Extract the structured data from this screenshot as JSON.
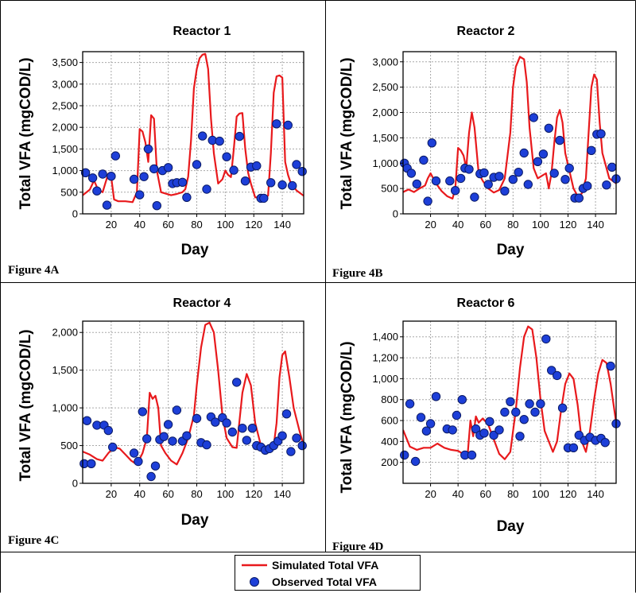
{
  "figure": {
    "captions": [
      "Figure 4A",
      "Figure 4B",
      "Figure 4C",
      "Figure 4D"
    ]
  },
  "legend": {
    "simulated": "Simulated Total VFA",
    "observed": "Observed Total VFA"
  },
  "colors": {
    "simulated": "#e8191c",
    "observed_fill": "#1d3fd8",
    "observed_edge": "#0a1a66",
    "frame": "#000000",
    "grid": "#a8a8a8"
  },
  "chart_data": [
    {
      "type": "line",
      "title": "Reactor 1",
      "xlabel": "Day",
      "ylabel": "Total VFA (mgCOD/L)",
      "xlim": [
        0,
        155
      ],
      "ylim": [
        0,
        3750
      ],
      "xticks": [
        20,
        40,
        60,
        80,
        100,
        120,
        140
      ],
      "xtick_labels": [
        "20",
        "40",
        "60",
        "80",
        "100",
        "120",
        "140"
      ],
      "yticks": [
        0,
        500,
        1000,
        1500,
        2000,
        2500,
        3000,
        3500
      ],
      "ytick_labels": [
        "0",
        "500",
        "1,000",
        "1,500",
        "2,000",
        "2,500",
        "3,000",
        "3,500"
      ],
      "grid": true,
      "series": [
        {
          "name": "Simulated Total VFA",
          "kind": "line",
          "x": [
            0,
            5,
            8,
            10,
            12,
            14,
            16,
            18,
            20,
            22,
            25,
            30,
            35,
            38,
            40,
            42,
            44,
            46,
            48,
            50,
            52,
            55,
            58,
            62,
            66,
            70,
            72,
            74,
            76,
            78,
            80,
            82,
            84,
            86,
            88,
            90,
            92,
            95,
            98,
            100,
            102,
            104,
            106,
            108,
            110,
            112,
            114,
            116,
            118,
            121,
            124,
            127,
            130,
            132,
            134,
            136,
            138,
            140,
            142,
            144,
            146,
            150,
            155
          ],
          "y": [
            430,
            560,
            770,
            620,
            540,
            500,
            720,
            930,
            850,
            330,
            290,
            290,
            270,
            500,
            1960,
            1900,
            1650,
            1200,
            2280,
            2200,
            1000,
            500,
            470,
            430,
            460,
            500,
            570,
            860,
            1700,
            2900,
            3350,
            3600,
            3680,
            3700,
            3350,
            2200,
            1400,
            700,
            800,
            1000,
            900,
            850,
            1500,
            2250,
            2320,
            2330,
            1500,
            950,
            700,
            380,
            380,
            370,
            420,
            1400,
            2800,
            3180,
            3200,
            3150,
            1200,
            900,
            700,
            540,
            420
          ]
        },
        {
          "name": "Observed Total VFA",
          "kind": "scatter",
          "x": [
            2,
            7,
            10,
            14,
            17,
            20,
            23,
            36,
            40,
            43,
            46,
            50,
            52,
            56,
            60,
            63,
            66,
            70,
            73,
            80,
            84,
            87,
            91,
            96,
            101,
            106,
            110,
            114,
            118,
            122,
            125,
            127,
            132,
            136,
            140,
            144,
            147,
            150,
            154
          ],
          "y": [
            950,
            830,
            530,
            920,
            200,
            870,
            1340,
            800,
            440,
            860,
            1500,
            1040,
            190,
            1000,
            1070,
            700,
            720,
            730,
            380,
            1140,
            1800,
            570,
            1700,
            1680,
            1320,
            1010,
            1790,
            760,
            1080,
            1110,
            360,
            360,
            720,
            2080,
            670,
            2050,
            650,
            1140,
            980
          ]
        }
      ]
    },
    {
      "type": "line",
      "title": "Reactor 2",
      "xlabel": "Day",
      "ylabel": "Total VFA (mgCOD/L)",
      "xlim": [
        0,
        155
      ],
      "ylim": [
        0,
        3200
      ],
      "xticks": [
        20,
        40,
        60,
        80,
        100,
        120,
        140
      ],
      "xtick_labels": [
        "20",
        "40",
        "60",
        "80",
        "100",
        "120",
        "140"
      ],
      "yticks": [
        0,
        500,
        1000,
        1500,
        2000,
        2500,
        3000
      ],
      "ytick_labels": [
        "0",
        "500",
        "1,000",
        "1,500",
        "2,000",
        "2,500",
        "3,000"
      ],
      "grid": true,
      "series": [
        {
          "name": "Simulated Total VFA",
          "kind": "line",
          "x": [
            0,
            4,
            8,
            12,
            16,
            18,
            20,
            22,
            24,
            28,
            32,
            36,
            38,
            40,
            42,
            44,
            46,
            48,
            50,
            52,
            55,
            58,
            62,
            66,
            70,
            74,
            78,
            80,
            82,
            85,
            88,
            90,
            92,
            95,
            98,
            101,
            104,
            106,
            108,
            110,
            112,
            114,
            116,
            118,
            121,
            124,
            127,
            130,
            133,
            135,
            137,
            139,
            141,
            143,
            145,
            150,
            155
          ],
          "y": [
            430,
            480,
            430,
            500,
            560,
            700,
            800,
            700,
            600,
            450,
            350,
            300,
            500,
            1300,
            1250,
            1150,
            900,
            1600,
            2000,
            1700,
            800,
            650,
            500,
            420,
            470,
            700,
            1600,
            2500,
            2900,
            3100,
            3050,
            2600,
            1700,
            900,
            700,
            750,
            800,
            500,
            800,
            1400,
            1900,
            2050,
            1800,
            1200,
            850,
            500,
            350,
            400,
            700,
            1600,
            2500,
            2750,
            2650,
            1800,
            1200,
            700,
            600
          ]
        },
        {
          "name": "Observed Total VFA",
          "kind": "scatter",
          "x": [
            1,
            3,
            6,
            10,
            15,
            18,
            21,
            24,
            34,
            38,
            42,
            45,
            48,
            52,
            56,
            59,
            62,
            66,
            70,
            74,
            80,
            84,
            88,
            91,
            95,
            98,
            102,
            106,
            110,
            114,
            118,
            121,
            125,
            128,
            131,
            134,
            137,
            141,
            144,
            148,
            152,
            155
          ],
          "y": [
            1000,
            900,
            800,
            590,
            1060,
            250,
            1400,
            650,
            650,
            460,
            700,
            900,
            880,
            330,
            790,
            810,
            580,
            720,
            740,
            450,
            680,
            820,
            1200,
            580,
            1900,
            1030,
            1180,
            1690,
            800,
            1450,
            680,
            900,
            310,
            310,
            500,
            550,
            1250,
            1570,
            1580,
            570,
            920,
            690
          ]
        }
      ]
    },
    {
      "type": "line",
      "title": "Reactor 4",
      "xlabel": "Day",
      "ylabel": "Total VFA (mgCOD/L)",
      "xlim": [
        0,
        155
      ],
      "ylim": [
        0,
        2150
      ],
      "xticks": [
        20,
        40,
        60,
        80,
        100,
        120,
        140
      ],
      "xtick_labels": [
        "20",
        "40",
        "60",
        "80",
        "100",
        "120",
        "140"
      ],
      "yticks": [
        0,
        500,
        1000,
        1500,
        2000
      ],
      "ytick_labels": [
        "0",
        "500",
        "1,000",
        "1,500",
        "2,000"
      ],
      "grid": true,
      "series": [
        {
          "name": "Simulated Total VFA",
          "kind": "line",
          "x": [
            0,
            5,
            10,
            14,
            18,
            22,
            26,
            30,
            34,
            38,
            42,
            45,
            47,
            49,
            51,
            53,
            55,
            58,
            62,
            66,
            70,
            74,
            78,
            80,
            83,
            86,
            89,
            92,
            95,
            98,
            101,
            105,
            108,
            112,
            115,
            118,
            121,
            125,
            128,
            131,
            134,
            136,
            138,
            140,
            142,
            145,
            148,
            152,
            155
          ],
          "y": [
            420,
            380,
            320,
            300,
            400,
            480,
            460,
            380,
            300,
            250,
            400,
            600,
            1200,
            1120,
            1160,
            1000,
            500,
            400,
            300,
            250,
            400,
            600,
            900,
            1300,
            1800,
            2100,
            2130,
            2000,
            1500,
            900,
            600,
            480,
            470,
            1200,
            1450,
            1300,
            800,
            500,
            460,
            460,
            500,
            800,
            1400,
            1700,
            1750,
            1400,
            1000,
            700,
            500
          ]
        },
        {
          "name": "Observed Total VFA",
          "kind": "scatter",
          "x": [
            1,
            3,
            6,
            10,
            15,
            18,
            21,
            36,
            39,
            42,
            45,
            48,
            51,
            54,
            57,
            60,
            63,
            66,
            70,
            73,
            80,
            83,
            87,
            90,
            93,
            98,
            101,
            105,
            108,
            112,
            115,
            119,
            122,
            125,
            128,
            131,
            134,
            137,
            140,
            143,
            146,
            150,
            154
          ],
          "y": [
            260,
            830,
            260,
            770,
            770,
            700,
            480,
            400,
            290,
            950,
            590,
            90,
            230,
            580,
            620,
            780,
            560,
            970,
            560,
            630,
            860,
            540,
            510,
            880,
            810,
            870,
            800,
            680,
            1340,
            730,
            570,
            730,
            500,
            480,
            440,
            460,
            500,
            560,
            630,
            920,
            420,
            600,
            500
          ]
        }
      ]
    },
    {
      "type": "line",
      "title": "Reactor 6",
      "xlabel": "Day",
      "ylabel": "Total VFA (mgCOD/L)",
      "xlim": [
        0,
        155
      ],
      "ylim": [
        0,
        1550
      ],
      "xticks": [
        20,
        40,
        60,
        80,
        100,
        120,
        140
      ],
      "xtick_labels": [
        "20",
        "40",
        "60",
        "80",
        "100",
        "120",
        "140"
      ],
      "yticks": [
        200,
        400,
        600,
        800,
        1000,
        1200,
        1400
      ],
      "ytick_labels": [
        "200",
        "400",
        "600",
        "800",
        "1,000",
        "1,200",
        "1,400"
      ],
      "grid": true,
      "series": [
        {
          "name": "Simulated Total VFA",
          "kind": "line",
          "x": [
            0,
            5,
            10,
            15,
            20,
            25,
            30,
            35,
            40,
            45,
            47,
            49,
            51,
            53,
            55,
            58,
            62,
            66,
            70,
            74,
            78,
            82,
            85,
            88,
            91,
            94,
            97,
            100,
            103,
            106,
            109,
            112,
            115,
            118,
            121,
            124,
            127,
            130,
            133,
            136,
            139,
            142,
            145,
            148,
            151,
            155
          ],
          "y": [
            510,
            350,
            320,
            340,
            340,
            380,
            340,
            320,
            310,
            270,
            280,
            600,
            450,
            640,
            580,
            620,
            560,
            420,
            280,
            230,
            300,
            700,
            1100,
            1400,
            1500,
            1470,
            1200,
            800,
            500,
            400,
            300,
            400,
            700,
            950,
            1050,
            1000,
            750,
            400,
            300,
            500,
            800,
            1050,
            1180,
            1150,
            950,
            580
          ]
        },
        {
          "name": "Observed Total VFA",
          "kind": "scatter",
          "x": [
            1,
            5,
            9,
            13,
            17,
            20,
            24,
            32,
            36,
            39,
            43,
            45,
            50,
            53,
            56,
            59,
            63,
            66,
            70,
            74,
            78,
            82,
            85,
            88,
            92,
            96,
            100,
            104,
            108,
            112,
            116,
            120,
            124,
            128,
            132,
            136,
            140,
            144,
            147,
            151,
            155
          ],
          "y": [
            270,
            760,
            210,
            630,
            500,
            570,
            830,
            520,
            510,
            650,
            800,
            270,
            270,
            520,
            460,
            480,
            590,
            460,
            510,
            680,
            780,
            680,
            450,
            610,
            760,
            680,
            760,
            1380,
            1080,
            1030,
            720,
            340,
            340,
            460,
            410,
            440,
            410,
            430,
            390,
            1120,
            570
          ]
        }
      ]
    }
  ]
}
